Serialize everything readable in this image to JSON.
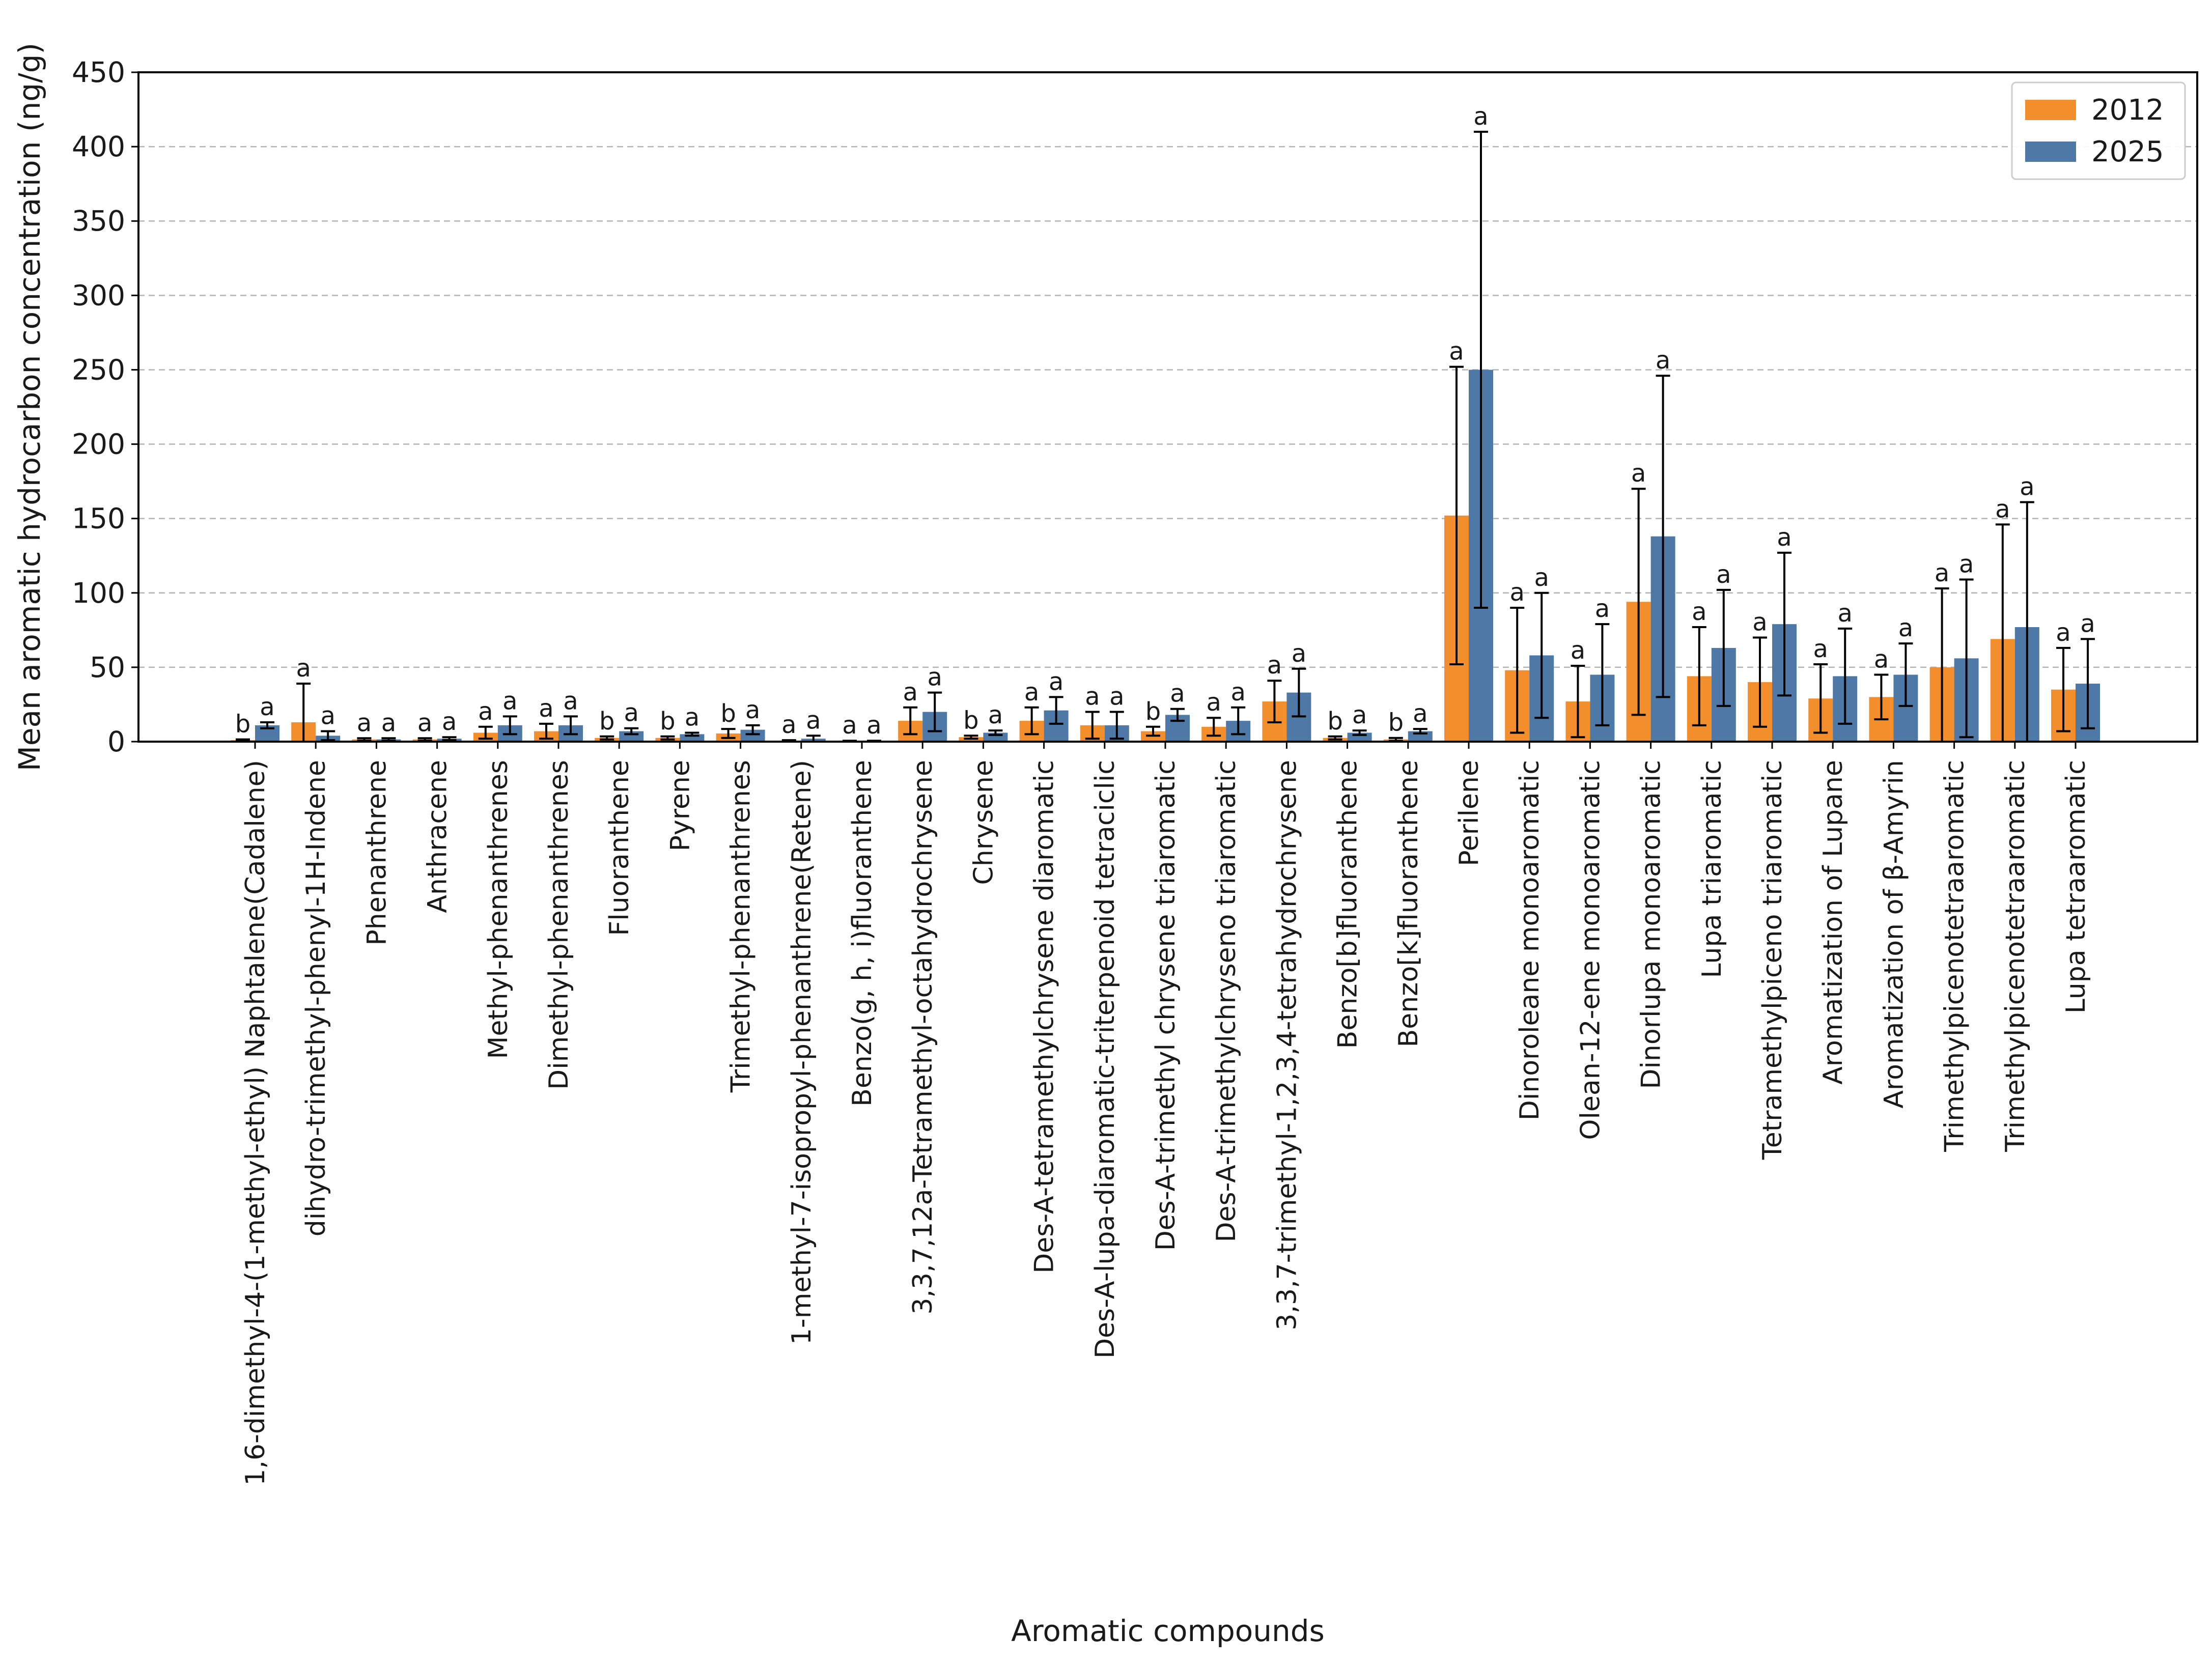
{
  "chart_data": {
    "type": "bar",
    "title": "",
    "xlabel": "Aromatic compounds",
    "ylabel": "Mean aromatic hydrocarbon concentration (ng/g)",
    "ylim": [
      0,
      450
    ],
    "yticks": [
      0,
      50,
      100,
      150,
      200,
      250,
      300,
      350,
      400,
      450
    ],
    "grid": "horizontal dashed",
    "legend_position": "top-right",
    "categories": [
      "1,6-dimethyl-4-(1-methyl-ethyl) Naphtalene(Cadalene)",
      "dihydro-trimethyl-phenyl-1H-Indene",
      "Phenanthrene",
      "Anthracene",
      "Methyl-phenanthrenes",
      "Dimethyl-phenanthrenes",
      "Fluoranthene",
      "Pyrene",
      "Trimethyl-phenanthrenes",
      "1-methyl-7-isopropyl-phenanthrene(Retene)",
      "Benzo(g, h, i)fluoranthene",
      "3,3,7,12a-Tetramethyl-octahydrochrysene",
      "Chrysene",
      "Des-A-tetramethylchrysene diaromatic",
      "Des-A-lupa-diaromatic-triterpenoid tetraciclic",
      "Des-A-trimethyl chrysene triaromatic",
      "Des-A-trimethylchryseno triaromatic",
      "3,3,7-trimethyl-1,2,3,4-tetrahydrochrysene",
      "Benzo[b]fluoranthene",
      "Benzo[k]fluoranthene",
      "Perilene",
      "Dinoroleane monoaromatic",
      "Olean-12-ene monoaromatic",
      "Dinorlupa monoaromatic",
      "Lupa triaromatic",
      "Tetramethylpiceno triaromatic",
      "Aromatization of  Lupane",
      "Aromatization of  β-Amyrin",
      "Trimethylpicenotetraaromatic",
      "Trimethylpicenotetraaromatic",
      "Lupa tetraaromatic"
    ],
    "series": [
      {
        "name": "2012",
        "color": "#F28E2B",
        "values": [
          1,
          13,
          1.5,
          1.5,
          6,
          7,
          2.5,
          2.5,
          5.5,
          0.5,
          0.3,
          14,
          3,
          14,
          11,
          7,
          10,
          27,
          2.5,
          1.5,
          152,
          48,
          27,
          94,
          44,
          40,
          29,
          30,
          50,
          69,
          35
        ],
        "errors": [
          0.5,
          26,
          0.8,
          0.8,
          4,
          5,
          1,
          1,
          3,
          0.5,
          0.3,
          9,
          1,
          9,
          9,
          3,
          6,
          14,
          1,
          1,
          100,
          42,
          24,
          76,
          33,
          30,
          23,
          15,
          53,
          77,
          28
        ],
        "sig": [
          "b",
          "a",
          "a",
          "a",
          "a",
          "a",
          "b",
          "b",
          "b",
          "a",
          "a",
          "a",
          "b",
          "a",
          "a",
          "b",
          "a",
          "a",
          "b",
          "b",
          "a",
          "a",
          "a",
          "a",
          "a",
          "a",
          "a",
          "a",
          "a",
          "a",
          "a"
        ]
      },
      {
        "name": "2025",
        "color": "#4E79A7",
        "values": [
          11,
          4,
          1.5,
          2,
          11,
          11,
          7,
          5,
          8,
          2,
          0.3,
          20,
          6,
          21,
          11,
          18,
          14,
          33,
          6,
          7,
          250,
          58,
          45,
          138,
          63,
          79,
          44,
          45,
          56,
          77,
          39
        ],
        "errors": [
          2,
          3,
          0.8,
          1,
          6,
          6,
          2,
          1,
          3,
          2,
          0.3,
          13,
          1.5,
          9,
          9,
          4,
          9,
          16,
          1.5,
          1.5,
          160,
          42,
          34,
          108,
          39,
          48,
          32,
          21,
          53,
          84,
          30
        ],
        "sig": [
          "a",
          "a",
          "a",
          "a",
          "a",
          "a",
          "a",
          "a",
          "a",
          "a",
          "a",
          "a",
          "a",
          "a",
          "a",
          "a",
          "a",
          "a",
          "a",
          "a",
          "a",
          "a",
          "a",
          "a",
          "a",
          "a",
          "a",
          "a",
          "a",
          "a",
          "a"
        ]
      }
    ]
  }
}
